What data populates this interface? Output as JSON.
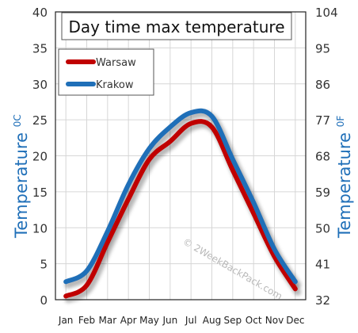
{
  "chart_data": {
    "type": "line",
    "title": "Day time max temperature",
    "categories": [
      "Jan",
      "Feb",
      "Mar",
      "Apr",
      "May",
      "Jun",
      "Jul",
      "Aug",
      "Sep",
      "Oct",
      "Nov",
      "Dec"
    ],
    "series": [
      {
        "name": "Warsaw",
        "color": "#c00000",
        "values": [
          0.5,
          2,
          8,
          14,
          19.5,
          22,
          24.5,
          24,
          18,
          12,
          6,
          1.5
        ]
      },
      {
        "name": "Krakow",
        "color": "#1f6fb8",
        "values": [
          2.5,
          4,
          9.5,
          16,
          21,
          24,
          26,
          25.5,
          19.5,
          13.5,
          7,
          2.5
        ]
      }
    ],
    "ylabel_left": "Temperature",
    "ylabel_left_unit": "0C",
    "ylabel_right": "Temperature",
    "ylabel_right_unit": "0F",
    "ylim": [
      0,
      40
    ],
    "yticks_left": [
      0,
      5,
      10,
      15,
      20,
      25,
      30,
      35,
      40
    ],
    "yticks_right": [
      32,
      41,
      50,
      59,
      68,
      77,
      86,
      95,
      104
    ],
    "grid": true,
    "legend_position": "top-left",
    "watermark": "© 2WeekBackPack.com"
  }
}
